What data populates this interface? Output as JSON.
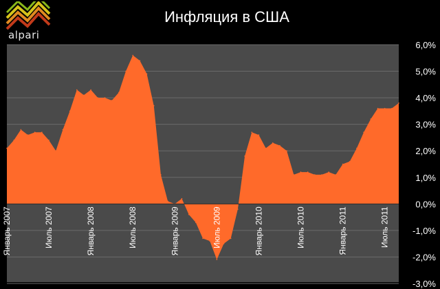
{
  "brand": {
    "name": "alpari"
  },
  "colors": {
    "background": "#000000",
    "plot_background": "#4a4a4a",
    "area_fill": "#ff6a2a",
    "gridline": "#6a6a6a",
    "text": "#ffffff"
  },
  "chart_data": {
    "type": "area",
    "title": "Инфляция в США",
    "xlabel": "",
    "ylabel": "",
    "ylim": [
      -3,
      6
    ],
    "ytick_values": [
      6,
      5,
      4,
      3,
      2,
      1,
      0,
      -1,
      -2,
      -3
    ],
    "ytick_labels": [
      "6,0%",
      "5,0%",
      "4,0%",
      "3,0%",
      "2,0%",
      "1,0%",
      "0,0%",
      "-1,0%",
      "-2,0%",
      "-3,0%"
    ],
    "xtick_labels": [
      {
        "index": 0,
        "label": "Январь 2007"
      },
      {
        "index": 6,
        "label": "Июль 2007"
      },
      {
        "index": 12,
        "label": "Январь 2008"
      },
      {
        "index": 18,
        "label": "Июль 2008"
      },
      {
        "index": 24,
        "label": "Январь 2009"
      },
      {
        "index": 30,
        "label": "Июль 2009"
      },
      {
        "index": 36,
        "label": "Январь 2010"
      },
      {
        "index": 42,
        "label": "Июль 2010"
      },
      {
        "index": 48,
        "label": "Январь 2011"
      },
      {
        "index": 54,
        "label": "Июль 2011"
      }
    ],
    "grid": true,
    "legend": "none",
    "series": [
      {
        "values": [
          2.1,
          2.4,
          2.8,
          2.6,
          2.7,
          2.7,
          2.4,
          2.0,
          2.8,
          3.5,
          4.3,
          4.1,
          4.3,
          4.0,
          4.0,
          3.9,
          4.2,
          5.0,
          5.6,
          5.4,
          4.9,
          3.7,
          1.1,
          0.1,
          0.0,
          0.2,
          -0.4,
          -0.7,
          -1.3,
          -1.4,
          -2.1,
          -1.5,
          -1.3,
          -0.2,
          1.8,
          2.7,
          2.6,
          2.1,
          2.3,
          2.2,
          2.0,
          1.1,
          1.2,
          1.2,
          1.1,
          1.1,
          1.2,
          1.1,
          1.5,
          1.6,
          2.1,
          2.7,
          3.2,
          3.6,
          3.6,
          3.6,
          3.8
        ]
      }
    ]
  }
}
